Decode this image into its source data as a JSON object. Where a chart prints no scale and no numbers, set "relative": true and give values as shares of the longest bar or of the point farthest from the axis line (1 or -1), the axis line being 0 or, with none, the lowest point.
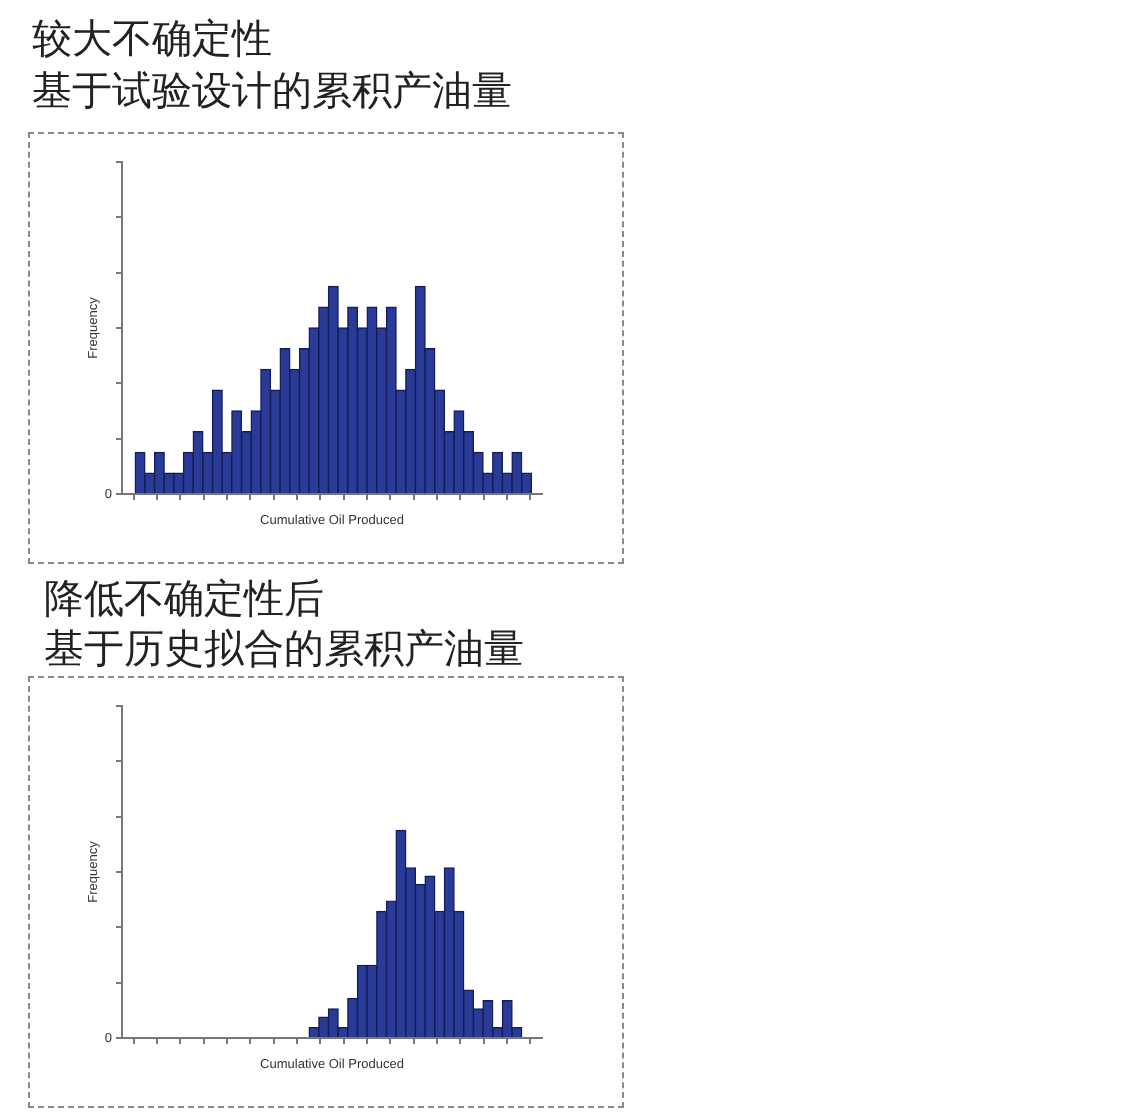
{
  "chart_data": [
    {
      "type": "bar",
      "title": "较大不确定性",
      "subtitle": "基于试验设计的累积产油量",
      "xlabel": "Cumulative Oil Produced",
      "ylabel": "Frequency",
      "relative": true,
      "annotations": [
        "0"
      ],
      "color": "#2a3a97",
      "categories": [
        null,
        null,
        null,
        null,
        null,
        null,
        null,
        null,
        null,
        null,
        null,
        null,
        null,
        null,
        null,
        null,
        null,
        null,
        null,
        null,
        null,
        null,
        null,
        null,
        null,
        null,
        null,
        null,
        null,
        null,
        null,
        null,
        null,
        null,
        null,
        null,
        null,
        null,
        null,
        null,
        null
      ],
      "values": [
        0.2,
        0.1,
        0.2,
        0.1,
        0.1,
        0.2,
        0.3,
        0.2,
        0.5,
        0.2,
        0.4,
        0.3,
        0.4,
        0.6,
        0.5,
        0.7,
        0.6,
        0.7,
        0.8,
        0.9,
        1,
        0.8,
        0.9,
        0.8,
        0.9,
        0.8,
        0.9,
        0.5,
        0.6,
        1,
        0.7,
        0.5,
        0.3,
        0.4,
        0.3,
        0.2,
        0.1,
        0.2,
        0.1,
        0.2,
        0.1
      ]
    },
    {
      "type": "bar",
      "title": "降低不确定性后",
      "subtitle": "基于历史拟合的累积产油量",
      "xlabel": "Cumulative Oil Produced",
      "ylabel": "Frequency",
      "relative": true,
      "annotations": [
        "0"
      ],
      "color": "#2a3a97",
      "categories": [
        null,
        null,
        null,
        null,
        null,
        null,
        null,
        null,
        null,
        null,
        null,
        null,
        null,
        null,
        null,
        null,
        null,
        null,
        null,
        null,
        null,
        null,
        null,
        null,
        null,
        null,
        null,
        null,
        null,
        null,
        null,
        null,
        null,
        null,
        null,
        null,
        null,
        null,
        null,
        null,
        null
      ],
      "values": [
        null,
        null,
        null,
        null,
        null,
        null,
        null,
        null,
        null,
        null,
        null,
        null,
        null,
        null,
        null,
        null,
        null,
        null,
        0.05,
        0.1,
        0.14,
        0.05,
        0.19,
        0.35,
        0.35,
        0.61,
        0.66,
        1,
        0.82,
        0.74,
        0.78,
        0.61,
        0.82,
        0.61,
        0.23,
        0.14,
        0.18,
        0.05,
        0.18,
        0.05,
        null
      ]
    }
  ]
}
